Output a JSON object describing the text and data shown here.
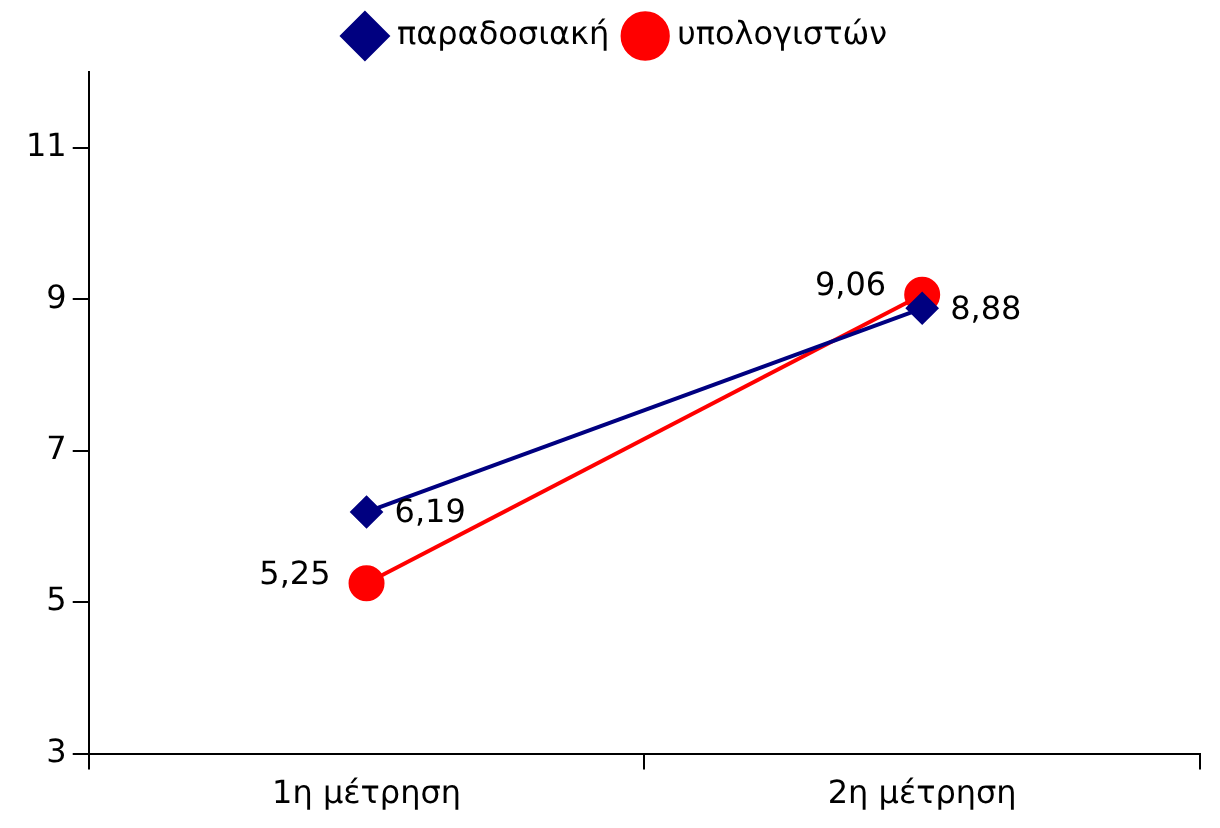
{
  "chart_data": {
    "type": "line",
    "categories": [
      "1η μέτρηση",
      "2η μέτρηση"
    ],
    "series": [
      {
        "name": "παραδοσιακή",
        "color": "#000080",
        "values": [
          6.19,
          8.88
        ],
        "marker": "diamond",
        "value_labels": [
          "6,19",
          "8,88"
        ]
      },
      {
        "name": "υπολογιστών",
        "color": "#ff0000",
        "values": [
          5.25,
          9.06
        ],
        "marker": "circle",
        "value_labels": [
          "5,25",
          "9,06"
        ]
      }
    ],
    "ylim": [
      3,
      12
    ],
    "yticks": [
      3,
      5,
      7,
      9,
      11
    ],
    "grid": false,
    "legend": "top",
    "line_style": "solid"
  }
}
